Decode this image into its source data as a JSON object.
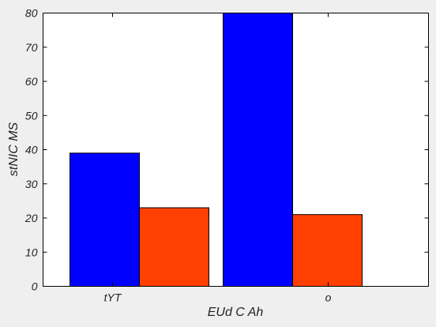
{
  "chart_data": {
    "type": "bar",
    "categories": [
      "tYT",
      "o"
    ],
    "series": [
      {
        "values": [
          39,
          80
        ],
        "color": "#0000ff"
      },
      {
        "values": [
          23,
          21
        ],
        "color": "#ff4000"
      }
    ],
    "xlabel": "EUd C Ah",
    "ylabel": "stNIC MS",
    "ylim": [
      0,
      80
    ],
    "yticks": [
      0,
      10,
      20,
      30,
      40,
      50,
      60,
      70,
      80
    ],
    "grid": false,
    "legend": "none"
  },
  "colors": {
    "background": "#efefef",
    "plot_area": "#ffffff",
    "axis": "#000000",
    "text": "#222222"
  }
}
